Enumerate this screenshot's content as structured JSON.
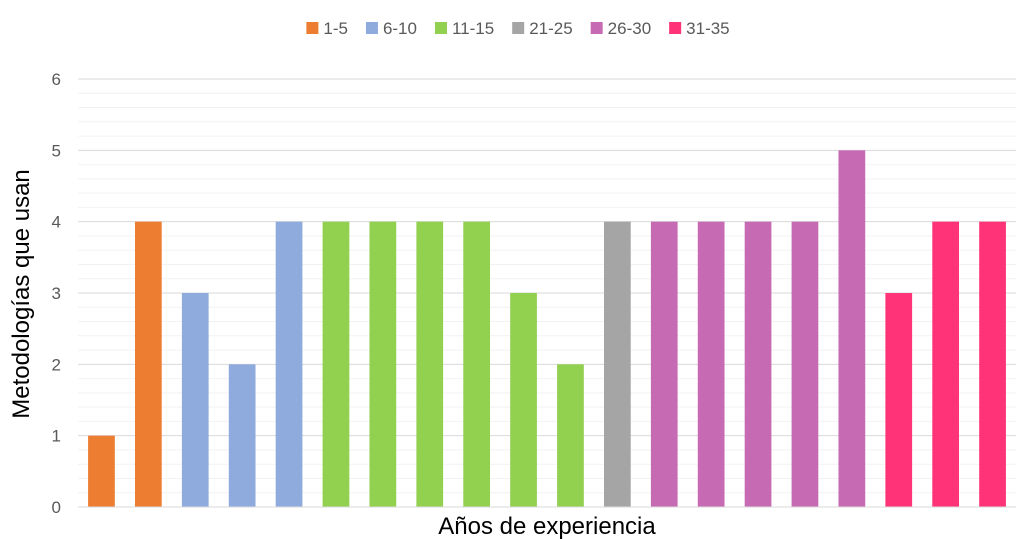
{
  "chart_data": {
    "type": "bar",
    "xlabel": "Años de experiencia",
    "ylabel": "Metodologías que usan",
    "ylim": [
      0,
      6
    ],
    "yticks": [
      0,
      1,
      2,
      3,
      4,
      5,
      6
    ],
    "minor_gridlines_per_unit": 5,
    "grid": true,
    "legend_position": "top",
    "series": [
      {
        "name": "1-5",
        "color": "#ED7D31",
        "values": [
          1,
          4
        ]
      },
      {
        "name": "6-10",
        "color": "#8FAADC",
        "values": [
          3,
          2,
          4
        ]
      },
      {
        "name": "11-15",
        "color": "#92D050",
        "values": [
          4,
          4,
          4,
          4,
          3,
          2
        ]
      },
      {
        "name": "21-25",
        "color": "#A5A5A5",
        "values": [
          4
        ]
      },
      {
        "name": "26-30",
        "color": "#C66BB3",
        "values": [
          4,
          4,
          4,
          4,
          5
        ]
      },
      {
        "name": "31-35",
        "color": "#FF3377",
        "values": [
          3,
          4,
          4
        ]
      }
    ]
  }
}
